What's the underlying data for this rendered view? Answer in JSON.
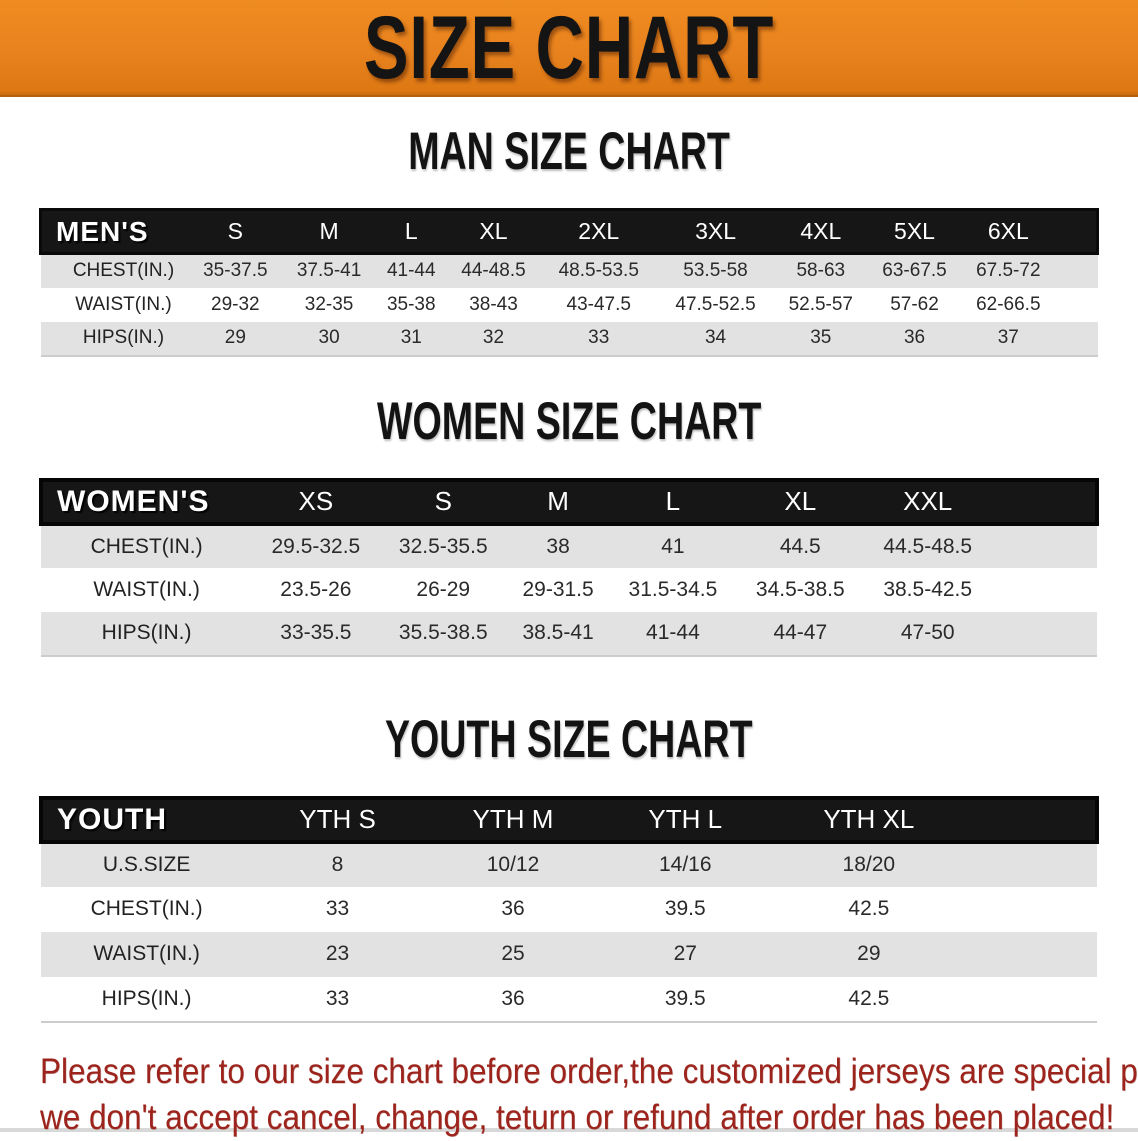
{
  "banner": {
    "title": "SIZE CHART",
    "bg_color": "#e8821e",
    "text_color": "#141414"
  },
  "sections": [
    {
      "key": "men",
      "heading": "MAN SIZE CHART",
      "header_label": "MEN'S",
      "columns": [
        "S",
        "M",
        "L",
        "XL",
        "2XL",
        "3XL",
        "4XL",
        "5XL",
        "6XL"
      ],
      "rows": [
        {
          "label": "CHEST(IN.)",
          "values": [
            "35-37.5",
            "37.5-41",
            "41-44",
            "44-48.5",
            "48.5-53.5",
            "53.5-58",
            "58-63",
            "63-67.5",
            "67.5-72"
          ]
        },
        {
          "label": "WAIST(IN.)",
          "values": [
            "29-32",
            "32-35",
            "35-38",
            "38-43",
            "43-47.5",
            "47.5-52.5",
            "52.5-57",
            "57-62",
            "62-66.5"
          ]
        },
        {
          "label": "HIPS(IN.)",
          "values": [
            "29",
            "30",
            "31",
            "32",
            "33",
            "34",
            "35",
            "36",
            "37"
          ]
        }
      ]
    },
    {
      "key": "women",
      "heading": "WOMEN SIZE CHART",
      "header_label": "WOMEN'S",
      "columns": [
        "XS",
        "S",
        "M",
        "L",
        "XL",
        "XXL"
      ],
      "rows": [
        {
          "label": "CHEST(IN.)",
          "values": [
            "29.5-32.5",
            "32.5-35.5",
            "38",
            "41",
            "44.5",
            "44.5-48.5"
          ]
        },
        {
          "label": "WAIST(IN.)",
          "values": [
            "23.5-26",
            "26-29",
            "29-31.5",
            "31.5-34.5",
            "34.5-38.5",
            "38.5-42.5"
          ]
        },
        {
          "label": "HIPS(IN.)",
          "values": [
            "33-35.5",
            "35.5-38.5",
            "38.5-41",
            "41-44",
            "44-47",
            "47-50"
          ]
        }
      ]
    },
    {
      "key": "youth",
      "heading": "YOUTH SIZE CHART",
      "header_label": "YOUTH",
      "columns": [
        "YTH S",
        "YTH M",
        "YTH L",
        "YTH XL"
      ],
      "rows": [
        {
          "label": "U.S.SIZE",
          "values": [
            "8",
            "10/12",
            "14/16",
            "18/20"
          ]
        },
        {
          "label": "CHEST(IN.)",
          "values": [
            "33",
            "36",
            "39.5",
            "42.5"
          ]
        },
        {
          "label": "WAIST(IN.)",
          "values": [
            "23",
            "25",
            "27",
            "29"
          ]
        },
        {
          "label": "HIPS(IN.)",
          "values": [
            "33",
            "36",
            "39.5",
            "42.5"
          ]
        }
      ]
    }
  ],
  "footer": {
    "lines": [
      "Please refer to our size chart before order,the customized jerseys are special products,",
      "we don't accept cancel, change, teturn or refund after order has been placed!"
    ],
    "text_color": "#9c241c"
  },
  "colors": {
    "banner_orange": "#e8821e",
    "table_header_black": "#161616",
    "row_stripe_gray": "#e2e2e2",
    "footer_red": "#9c241c"
  }
}
